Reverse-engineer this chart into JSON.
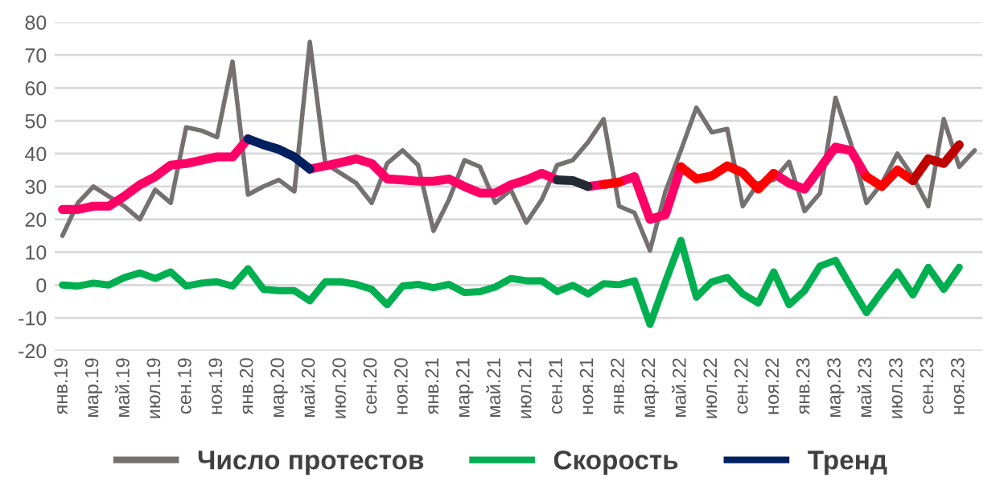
{
  "chart_data": {
    "type": "line",
    "categories": [
      "янв.19",
      null,
      "мар.19",
      null,
      "май.19",
      null,
      "июл.19",
      null,
      "сен.19",
      null,
      "ноя.19",
      null,
      "янв.20",
      null,
      "мар.20",
      null,
      "май.20",
      null,
      "июл.20",
      null,
      "сен.20",
      null,
      "ноя.20",
      null,
      "янв.21",
      null,
      "мар.21",
      null,
      "май.21",
      null,
      "июл.21",
      null,
      "сен.21",
      null,
      "ноя.21",
      null,
      "янв.22",
      null,
      "мар.22",
      null,
      "май.22",
      null,
      "июл.22",
      null,
      "сен.22",
      null,
      "ноя.22",
      null,
      "янв.23",
      null,
      "мар.23",
      null,
      "май.23",
      null,
      "июл.23",
      null,
      "сен.23",
      null,
      "ноя.23",
      null
    ],
    "series": [
      {
        "name": "Число протестов",
        "color": "#767171",
        "values": [
          15,
          25,
          30,
          27,
          24,
          20,
          29,
          25,
          48,
          47,
          45,
          68,
          27.5,
          30,
          32,
          28.5,
          74,
          37,
          34,
          31,
          25,
          37,
          41,
          36.5,
          16.5,
          26,
          38,
          36,
          25,
          29,
          19,
          26,
          36.5,
          38,
          43.5,
          50.5,
          24,
          22,
          10.5,
          28.5,
          41,
          54,
          46.5,
          47.5,
          24,
          31,
          32,
          37.5,
          22.5,
          28,
          57,
          43,
          25,
          31,
          40,
          33,
          24,
          50.5,
          36,
          41
        ]
      },
      {
        "name": "Скорость",
        "color": "#00B050",
        "values": [
          0,
          -0.3,
          0.6,
          0,
          2.3,
          3.7,
          2,
          4,
          -0.3,
          0.6,
          1,
          -0.3,
          5,
          -1.3,
          -1.7,
          -1.7,
          -4.8,
          1,
          1,
          0.2,
          -1.3,
          -6,
          -0.3,
          0.2,
          -0.8,
          0.2,
          -2.3,
          -2,
          -0.6,
          2,
          1.3,
          1.3,
          -2,
          -0.1,
          -2.7,
          0.4,
          0.1,
          1.3,
          -12,
          1,
          13.6,
          -3.7,
          1,
          2.3,
          -2.7,
          -5.5,
          4,
          -6,
          -1.7,
          5.8,
          7.5,
          -0.6,
          -8.4,
          -2,
          4,
          -3,
          5.4,
          -1.3,
          5.4,
          null
        ]
      },
      {
        "color": "#FF0066",
        "values": [
          23,
          23,
          24,
          24,
          27,
          30.5,
          33,
          36.5,
          37,
          38,
          39,
          39,
          44.5,
          null,
          null,
          null,
          35.3,
          36.3,
          37.3,
          38.4,
          37,
          32.3,
          32,
          31.6,
          31.6,
          32.3,
          30,
          28,
          28,
          30.5,
          32,
          34,
          32,
          null,
          30,
          30.6,
          31.3,
          33,
          20,
          21.4,
          36,
          null,
          null,
          null,
          null,
          null,
          34,
          31,
          29.2,
          35.6,
          42,
          40.9,
          33,
          null,
          null,
          null,
          null,
          null,
          null,
          null
        ]
      },
      {
        "name": "Тренд",
        "color": "#002060",
        "values": [
          null,
          null,
          null,
          null,
          null,
          null,
          null,
          null,
          null,
          null,
          null,
          null,
          44.5,
          42.7,
          41.3,
          39,
          35.3,
          null,
          null,
          null,
          null,
          null,
          null,
          null,
          null,
          null,
          null,
          null,
          null,
          null,
          null,
          null,
          null,
          null,
          null,
          null,
          null,
          null,
          null,
          null,
          null,
          null,
          null,
          null,
          null,
          null,
          null,
          null,
          null,
          null,
          null,
          null,
          null,
          null,
          null,
          null,
          null,
          null,
          null,
          null
        ]
      },
      {
        "color": "#222A35",
        "values": [
          null,
          null,
          null,
          null,
          null,
          null,
          null,
          null,
          null,
          null,
          null,
          null,
          null,
          null,
          null,
          null,
          null,
          null,
          null,
          null,
          null,
          null,
          null,
          null,
          null,
          null,
          null,
          null,
          null,
          null,
          null,
          null,
          32,
          31.8,
          30,
          null,
          null,
          null,
          null,
          null,
          null,
          null,
          null,
          null,
          null,
          null,
          null,
          null,
          null,
          null,
          null,
          null,
          null,
          null,
          null,
          null,
          null,
          null,
          null,
          null
        ]
      },
      {
        "color": "#FF0000",
        "values": [
          null,
          null,
          null,
          null,
          null,
          null,
          null,
          null,
          null,
          null,
          null,
          null,
          null,
          null,
          null,
          null,
          null,
          null,
          null,
          null,
          null,
          null,
          null,
          null,
          null,
          null,
          null,
          null,
          null,
          null,
          null,
          null,
          null,
          null,
          null,
          30.6,
          31.3,
          null,
          null,
          null,
          36,
          32.3,
          33.2,
          36.3,
          34.2,
          29.2,
          34,
          null,
          null,
          null,
          null,
          null,
          33,
          30,
          35,
          31.8,
          null,
          null,
          null,
          null
        ]
      },
      {
        "color": "#C00000",
        "values": [
          null,
          null,
          null,
          null,
          null,
          null,
          null,
          null,
          null,
          null,
          null,
          null,
          null,
          null,
          null,
          null,
          null,
          null,
          null,
          null,
          null,
          null,
          null,
          null,
          null,
          null,
          null,
          null,
          null,
          null,
          null,
          null,
          null,
          null,
          null,
          null,
          null,
          null,
          null,
          null,
          null,
          null,
          null,
          null,
          null,
          null,
          null,
          null,
          null,
          null,
          null,
          null,
          null,
          null,
          null,
          31.8,
          38.4,
          37,
          42.7,
          null
        ]
      }
    ],
    "ylim": [
      -20,
      80
    ],
    "yticks": [
      -20,
      -10,
      0,
      10,
      20,
      30,
      40,
      50,
      60,
      70,
      80
    ],
    "grid": "y",
    "legend": "bottom",
    "marker": "none",
    "line_style": "solid"
  }
}
